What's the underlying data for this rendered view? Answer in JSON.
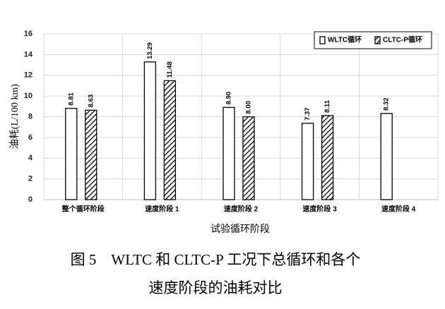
{
  "chart_data": {
    "type": "bar",
    "categories": [
      "整个循环阶段",
      "速度阶段 1",
      "速度阶段 2",
      "速度阶段 3",
      "速度阶段 4"
    ],
    "series": [
      {
        "name": "WLTC循环",
        "color": "#000000",
        "hatch": false,
        "values": [
          8.81,
          13.29,
          8.9,
          7.37,
          8.32
        ],
        "value_labels": [
          "8.81",
          "13.29",
          "8.90",
          "7.37",
          "8.32"
        ]
      },
      {
        "name": "CLTC-P循环",
        "color": "#000000",
        "hatch": true,
        "values": [
          8.63,
          11.48,
          8.0,
          8.11,
          null
        ],
        "value_labels": [
          "8.63",
          "11.48",
          "8.00",
          "8.11",
          null
        ]
      }
    ],
    "ylim": [
      0,
      16
    ],
    "yticks": [
      0,
      2,
      4,
      6,
      8,
      10,
      12,
      14,
      16
    ],
    "grid": true,
    "y_label": "油耗(L/100 km)",
    "x_label": "试验循环阶段",
    "legend": "top-right",
    "caption": [
      "图 5　WLTC 和 CLTC-P 工况下总循环和各个",
      "速度阶段的油耗对比"
    ]
  }
}
